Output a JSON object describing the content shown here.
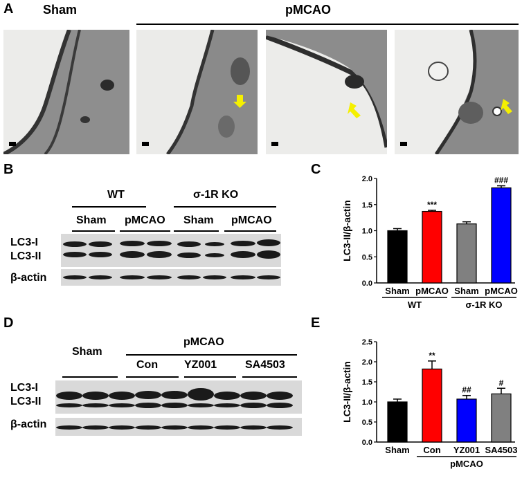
{
  "panel_a": {
    "letter": "A",
    "header_sham": "Sham",
    "header_pmcao": "pMCAO"
  },
  "panel_b": {
    "letter": "B",
    "group_wt": "WT",
    "group_ko": "σ-1R KO",
    "lane_labels": [
      "Sham",
      "pMCAO",
      "Sham",
      "pMCAO"
    ],
    "band_lc3i": "LC3-I",
    "band_lc3ii": "LC3-II",
    "band_actin": "β-actin"
  },
  "panel_d": {
    "letter": "D",
    "group_sham": "Sham",
    "group_pmcao": "pMCAO",
    "lane_labels": [
      "Con",
      "YZ001",
      "SA4503"
    ],
    "band_lc3i": "LC3-I",
    "band_lc3ii": "LC3-II",
    "band_actin": "β-actin"
  },
  "chart_data": [
    {
      "panel": "C",
      "type": "bar",
      "ylabel": "LC3-II/β-actin",
      "ylim": [
        0,
        2.0
      ],
      "yticks": [
        "0.0",
        "0.5",
        "1.0",
        "1.5",
        "2.0"
      ],
      "categories": [
        "Sham",
        "pMCAO",
        "Sham",
        "pMCAO"
      ],
      "values": [
        1.0,
        1.37,
        1.13,
        1.82
      ],
      "errors": [
        0.04,
        0.02,
        0.04,
        0.04
      ],
      "colors": [
        "#000000",
        "#ff0000",
        "#808080",
        "#0000ff"
      ],
      "annotations": [
        "",
        "***",
        "",
        "###"
      ],
      "groups": [
        {
          "label": "WT",
          "categories": [
            0,
            1
          ]
        },
        {
          "label": "σ-1R KO",
          "categories": [
            2,
            3
          ]
        }
      ]
    },
    {
      "panel": "E",
      "type": "bar",
      "ylabel": "LC3-II/β-actin",
      "ylim": [
        0,
        2.5
      ],
      "yticks": [
        "0.0",
        "0.5",
        "1.0",
        "1.5",
        "2.0",
        "2.5"
      ],
      "categories": [
        "Sham",
        "Con",
        "YZ001",
        "SA4503"
      ],
      "values": [
        1.0,
        1.82,
        1.07,
        1.2
      ],
      "errors": [
        0.07,
        0.2,
        0.09,
        0.14
      ],
      "colors": [
        "#000000",
        "#ff0000",
        "#0000ff",
        "#808080"
      ],
      "annotations": [
        "",
        "**",
        "##",
        "#"
      ],
      "groups": [
        {
          "label": "pMCAO",
          "categories": [
            1,
            2,
            3
          ]
        }
      ]
    }
  ]
}
